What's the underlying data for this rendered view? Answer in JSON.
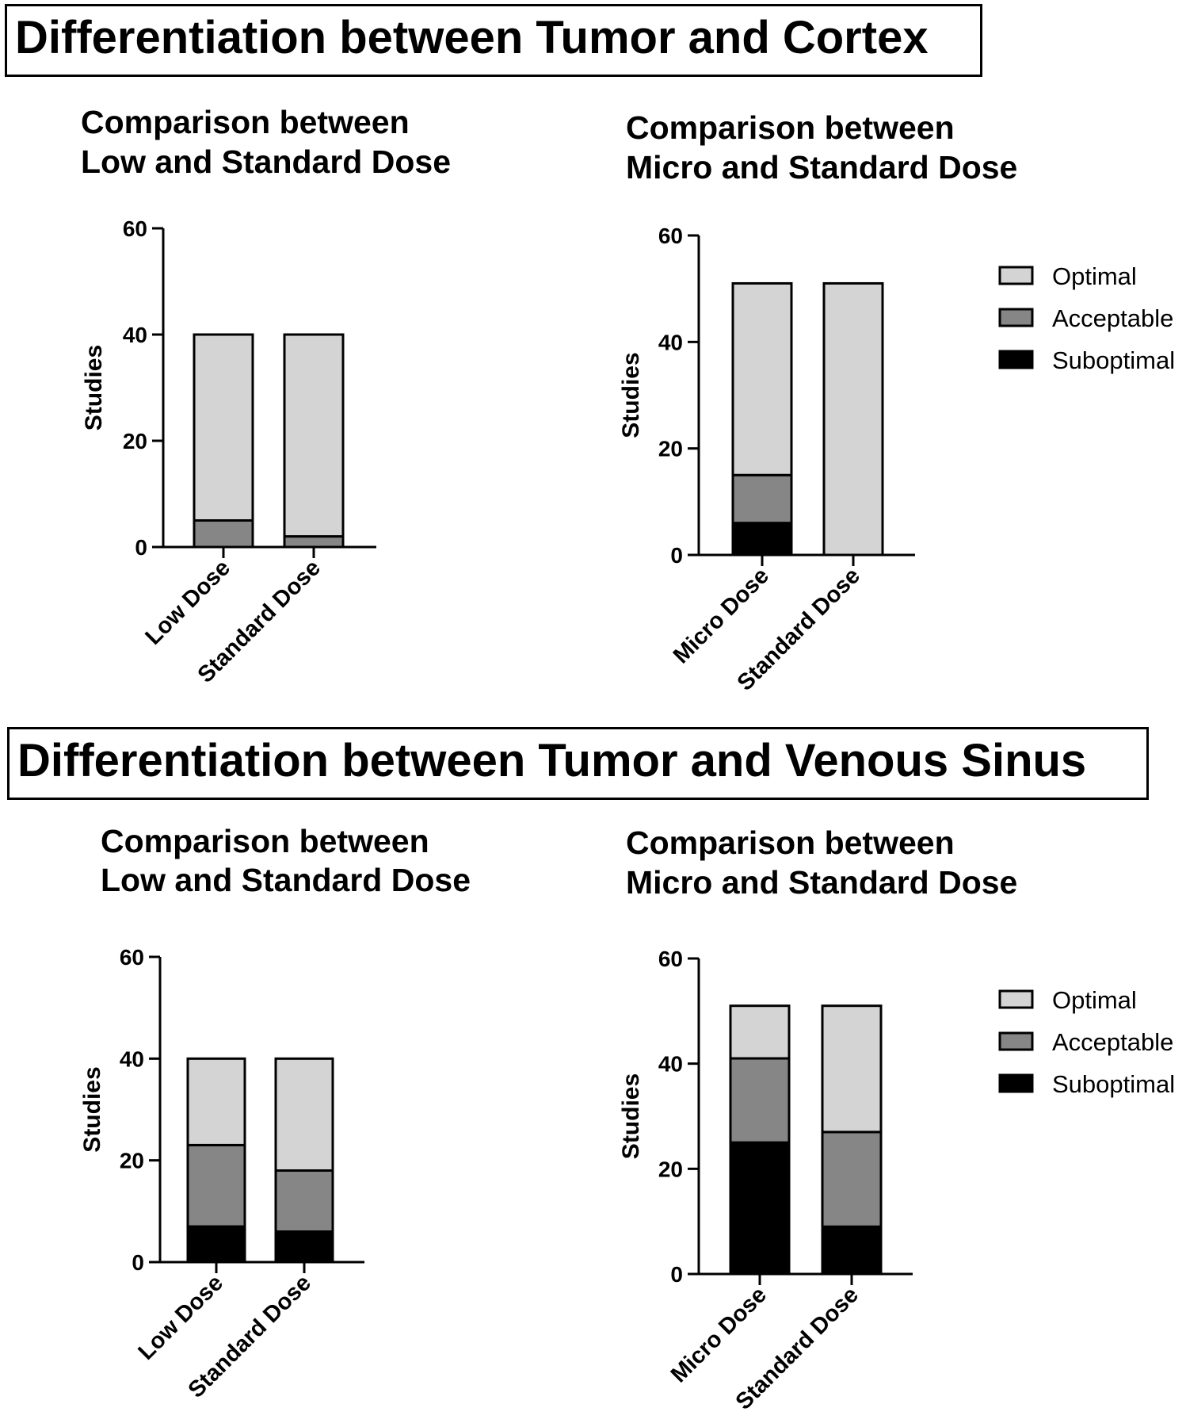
{
  "sections": [
    {
      "title": "Differentiation between Tumor and Cortex"
    },
    {
      "title": "Differentiation between Tumor and Venous Sinus"
    }
  ],
  "colors": {
    "Optimal": "#d4d4d4",
    "Acceptable": "#868686",
    "Suboptimal": "#000000"
  },
  "chart_data": [
    {
      "type": "bar",
      "stacked": true,
      "title": "Comparison between Low and Standard Dose",
      "title_lines": [
        "Comparison between",
        "Low and Standard Dose"
      ],
      "ylabel": "Studies",
      "ylim": [
        0,
        60
      ],
      "yticks": [
        0,
        20,
        40,
        60
      ],
      "categories": [
        "Low Dose",
        "Standard Dose"
      ],
      "series": [
        {
          "name": "Suboptimal",
          "values": [
            0,
            0
          ]
        },
        {
          "name": "Acceptable",
          "values": [
            5,
            2
          ]
        },
        {
          "name": "Optimal",
          "values": [
            35,
            38
          ]
        }
      ],
      "legend": null
    },
    {
      "type": "bar",
      "stacked": true,
      "title": "Comparison between Micro and Standard Dose",
      "title_lines": [
        "Comparison between",
        "Micro and Standard Dose"
      ],
      "ylabel": "Studies",
      "ylim": [
        0,
        60
      ],
      "yticks": [
        0,
        20,
        40,
        60
      ],
      "categories": [
        "Micro Dose",
        "Standard Dose"
      ],
      "series": [
        {
          "name": "Suboptimal",
          "values": [
            6,
            0
          ]
        },
        {
          "name": "Acceptable",
          "values": [
            9,
            0
          ]
        },
        {
          "name": "Optimal",
          "values": [
            36,
            51
          ]
        }
      ],
      "legend": "right",
      "legend_order": [
        "Optimal",
        "Acceptable",
        "Suboptimal"
      ]
    },
    {
      "type": "bar",
      "stacked": true,
      "title": "Comparison between Low and Standard Dose",
      "title_lines": [
        "Comparison between",
        "Low and Standard Dose"
      ],
      "ylabel": "Studies",
      "ylim": [
        0,
        60
      ],
      "yticks": [
        0,
        20,
        40,
        60
      ],
      "categories": [
        "Low Dose",
        "Standard Dose"
      ],
      "series": [
        {
          "name": "Suboptimal",
          "values": [
            7,
            6
          ]
        },
        {
          "name": "Acceptable",
          "values": [
            16,
            12
          ]
        },
        {
          "name": "Optimal",
          "values": [
            17,
            22
          ]
        }
      ],
      "legend": null
    },
    {
      "type": "bar",
      "stacked": true,
      "title": "Comparison between Micro and Standard Dose",
      "title_lines": [
        "Comparison between",
        "Micro and Standard Dose"
      ],
      "ylabel": "Studies",
      "ylim": [
        0,
        60
      ],
      "yticks": [
        0,
        20,
        40,
        60
      ],
      "categories": [
        "Micro Dose",
        "Standard Dose"
      ],
      "series": [
        {
          "name": "Suboptimal",
          "values": [
            25,
            9
          ]
        },
        {
          "name": "Acceptable",
          "values": [
            16,
            18
          ]
        },
        {
          "name": "Optimal",
          "values": [
            10,
            24
          ]
        }
      ],
      "legend": "right",
      "legend_order": [
        "Optimal",
        "Acceptable",
        "Suboptimal"
      ]
    }
  ]
}
